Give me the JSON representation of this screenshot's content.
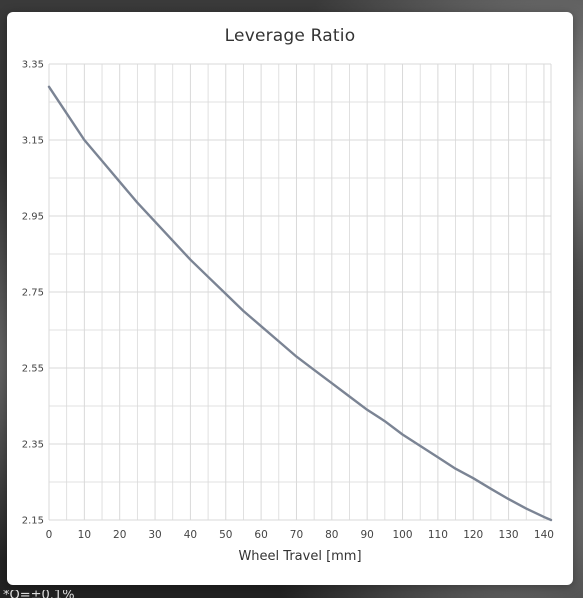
{
  "footnote_text": "*Q=±0.1%",
  "chart_data": {
    "type": "line",
    "title": "Leverage Ratio",
    "xlabel": "Wheel Travel [mm]",
    "ylabel": "",
    "xlim": [
      0,
      142
    ],
    "ylim": [
      2.15,
      3.35
    ],
    "x_ticks": [
      0,
      10,
      20,
      30,
      40,
      50,
      60,
      70,
      80,
      90,
      100,
      110,
      120,
      130,
      140
    ],
    "y_ticks": [
      2.15,
      2.35,
      2.55,
      2.75,
      2.95,
      3.15,
      3.35
    ],
    "x_tick_labels": [
      "0",
      "10",
      "20",
      "30",
      "40",
      "50",
      "60",
      "70",
      "80",
      "90",
      "100",
      "110",
      "120",
      "130",
      "140"
    ],
    "y_tick_labels": [
      "2.15",
      "2.35",
      "2.55",
      "2.75",
      "2.95",
      "3.15",
      "3.35"
    ],
    "grid": true,
    "line_color": "#7b8494",
    "grid_color": "#d9d9d9",
    "series": [
      {
        "x": [
          0,
          5,
          10,
          15,
          20,
          25,
          30,
          35,
          40,
          45,
          50,
          55,
          60,
          65,
          70,
          75,
          80,
          85,
          90,
          95,
          100,
          105,
          110,
          115,
          120,
          125,
          130,
          135,
          140,
          142
        ],
        "values": [
          3.29,
          3.22,
          3.15,
          3.095,
          3.04,
          2.985,
          2.935,
          2.885,
          2.835,
          2.79,
          2.745,
          2.7,
          2.66,
          2.62,
          2.58,
          2.545,
          2.51,
          2.475,
          2.44,
          2.41,
          2.375,
          2.345,
          2.315,
          2.285,
          2.26,
          2.232,
          2.205,
          2.18,
          2.158,
          2.15
        ]
      }
    ]
  }
}
